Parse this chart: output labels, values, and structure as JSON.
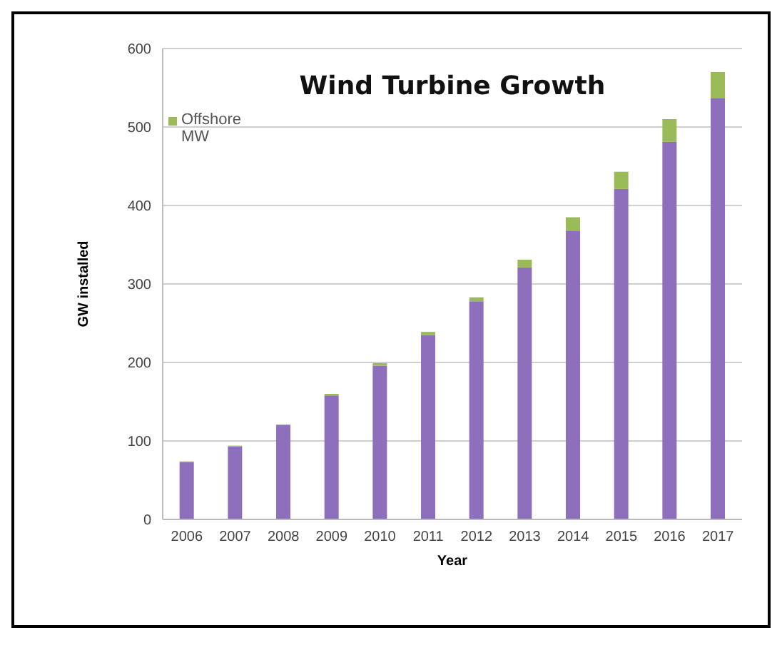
{
  "chart_data": {
    "type": "bar",
    "title": "Wind Turbine Growth",
    "xlabel": "Year",
    "ylabel": "GW installed",
    "categories": [
      "2006",
      "2007",
      "2008",
      "2009",
      "2010",
      "2011",
      "2012",
      "2013",
      "2014",
      "2015",
      "2016",
      "2017"
    ],
    "series": [
      {
        "color": "#8e6fbb",
        "values": [
          73,
          93,
          120,
          158,
          196,
          235,
          278,
          321,
          368,
          421,
          481,
          537
        ]
      },
      {
        "name": "Offshore MW",
        "color": "#9bbb59",
        "values": [
          1,
          1,
          1,
          2,
          3,
          4,
          5,
          10,
          17,
          22,
          29,
          33
        ]
      }
    ],
    "stacked": true,
    "ylim": [
      0,
      600
    ],
    "yticks": [
      0,
      100,
      200,
      300,
      400,
      500,
      600
    ],
    "grid": "y",
    "legend": "top left"
  }
}
